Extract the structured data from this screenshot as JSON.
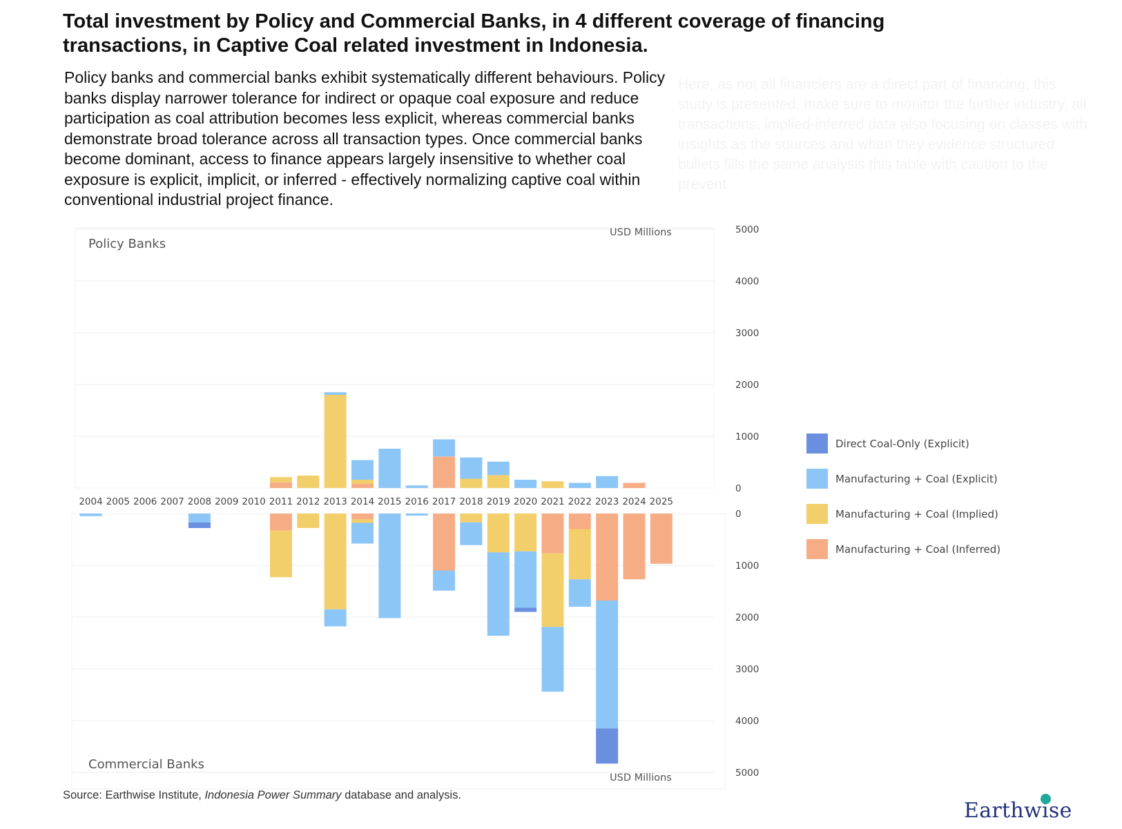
{
  "title": "Total investment by Policy and Commercial Banks, in 4 different coverage of financing transactions, in Captive Coal related investment in Indonesia.",
  "description": "Policy banks and commercial banks exhibit systematically different behaviours. Policy banks display narrower tolerance for indirect or opaque coal exposure and reduce participation as coal attribution becomes less explicit, whereas commercial banks demonstrate broad tolerance across all transaction types. Once commercial banks become dominant, access to finance appears largely insensitive to whether coal exposure is explicit, implicit, or inferred - effectively normalizing captive coal within conventional industrial project finance.",
  "faded_text": "Here, as not all financiers are a direct part of financing, this study is presented, make sure to monitor the further industry, all transactions, implied-inferred data also focusing on classes with insights as the sources and when they evidence structured bullets fills the same analysis this table with caution to the prevent",
  "source": {
    "prefix": "Source: Earthwise Institute, ",
    "italic": "Indonesia Power Summary",
    "suffix": " database and analysis."
  },
  "logo": "Earthwise",
  "colors": {
    "direct": "#6b8fdf",
    "explicit": "#8cc6f7",
    "implied": "#f2cf6b",
    "inferred": "#f6ad85"
  },
  "chart_data": {
    "type": "bar",
    "stacked": true,
    "unit": "USD Millions",
    "categories": [
      "2004",
      "2005",
      "2006",
      "2007",
      "2008",
      "2009",
      "2010",
      "2011",
      "2012",
      "2013",
      "2014",
      "2015",
      "2016",
      "2017",
      "2018",
      "2019",
      "2020",
      "2021",
      "2022",
      "2023",
      "2024",
      "2025"
    ],
    "stack_order": [
      "inferred",
      "implied",
      "explicit",
      "direct"
    ],
    "legend": [
      {
        "key": "direct",
        "label": "Direct Coal-Only (Explicit)"
      },
      {
        "key": "explicit",
        "label": "Manufacturing + Coal (Explicit)"
      },
      {
        "key": "implied",
        "label": "Manufacturing + Coal (Implied)"
      },
      {
        "key": "inferred",
        "label": "Manufacturing + Coal (Inferred)"
      }
    ],
    "panels": [
      {
        "label": "Policy Banks",
        "direction": "up",
        "ylim": [
          0,
          5000
        ],
        "ticks": [
          0,
          1000,
          2000,
          3000,
          4000,
          5000
        ],
        "tick_labels": [
          "0",
          "1000",
          "2000",
          "3000",
          "4000",
          "5000"
        ],
        "series": [
          {
            "key": "direct",
            "name": "Direct Coal-Only (Explicit)",
            "values": [
              0,
              0,
              0,
              0,
              0,
              0,
              0,
              0,
              0,
              0,
              0,
              0,
              0,
              0,
              0,
              0,
              0,
              0,
              0,
              0,
              0,
              0
            ]
          },
          {
            "key": "explicit",
            "name": "Manufacturing + Coal (Explicit)",
            "values": [
              0,
              0,
              0,
              0,
              0,
              0,
              0,
              0,
              0,
              50,
              380,
              760,
              50,
              330,
              410,
              260,
              160,
              0,
              100,
              230,
              0,
              0
            ]
          },
          {
            "key": "implied",
            "name": "Manufacturing + Coal (Implied)",
            "values": [
              0,
              0,
              0,
              0,
              0,
              0,
              0,
              100,
              240,
              1800,
              80,
              0,
              0,
              0,
              180,
              250,
              0,
              130,
              0,
              0,
              0,
              0
            ]
          },
          {
            "key": "inferred",
            "name": "Manufacturing + Coal (Inferred)",
            "values": [
              0,
              0,
              0,
              0,
              0,
              0,
              0,
              110,
              0,
              0,
              80,
              0,
              0,
              610,
              0,
              0,
              0,
              0,
              0,
              0,
              100,
              0
            ]
          }
        ]
      },
      {
        "label": "Commercial Banks",
        "direction": "down",
        "ylim": [
          0,
          5000
        ],
        "ticks": [
          0,
          1000,
          2000,
          3000,
          4000,
          5000
        ],
        "tick_labels": [
          "0",
          "1000",
          "2000",
          "3000",
          "4000",
          "5000"
        ],
        "series": [
          {
            "key": "explicit",
            "name": "Manufacturing + Coal (Explicit)",
            "values": [
              50,
              0,
              0,
              0,
              170,
              0,
              0,
              0,
              0,
              330,
              400,
              2020,
              40,
              390,
              440,
              1610,
              1090,
              1250,
              530,
              2470,
              0,
              0
            ]
          },
          {
            "key": "direct",
            "name": "Direct Coal-Only (Explicit)",
            "values": [
              0,
              0,
              0,
              0,
              110,
              0,
              0,
              0,
              0,
              0,
              0,
              0,
              0,
              0,
              0,
              0,
              80,
              0,
              0,
              680,
              0,
              0
            ]
          },
          {
            "key": "implied",
            "name": "Manufacturing + Coal (Implied)",
            "values": [
              0,
              0,
              0,
              0,
              0,
              0,
              0,
              900,
              280,
              1850,
              70,
              0,
              0,
              0,
              170,
              750,
              730,
              1420,
              970,
              0,
              0,
              0
            ]
          },
          {
            "key": "inferred",
            "name": "Manufacturing + Coal (Inferred)",
            "values": [
              0,
              0,
              0,
              0,
              0,
              0,
              0,
              330,
              0,
              0,
              110,
              0,
              0,
              1100,
              0,
              0,
              0,
              770,
              300,
              1680,
              1270,
              970
            ]
          }
        ]
      }
    ]
  }
}
